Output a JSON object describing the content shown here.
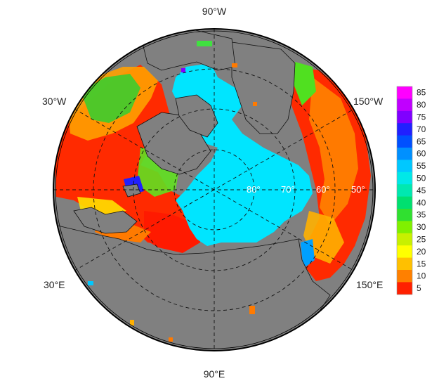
{
  "map": {
    "projection": "north-polar-stereographic",
    "land_color": "#808080",
    "ocean_background": "#ffffff",
    "ice_color": "#00E5FF",
    "longitude_labels": {
      "top": "90°W",
      "bottom": "90°E",
      "upper_left": "30°W",
      "lower_left": "30°E",
      "upper_right": "150°W",
      "lower_right": "150°E"
    },
    "latitude_labels": [
      "80°",
      "70°",
      "60°",
      "50°"
    ]
  },
  "colorbar": {
    "ticks": [
      "85",
      "80",
      "75",
      "70",
      "65",
      "60",
      "55",
      "50",
      "45",
      "40",
      "35",
      "30",
      "25",
      "20",
      "15",
      "10",
      "5"
    ],
    "colors": [
      "#FF00FF",
      "#C000FF",
      "#8000FF",
      "#2020FF",
      "#0050FF",
      "#0090FF",
      "#00C8FF",
      "#00E8E8",
      "#00E8B0",
      "#00E070",
      "#30E030",
      "#80F000",
      "#C8F000",
      "#FFFF00",
      "#FFC000",
      "#FF8000",
      "#FF2000"
    ]
  }
}
